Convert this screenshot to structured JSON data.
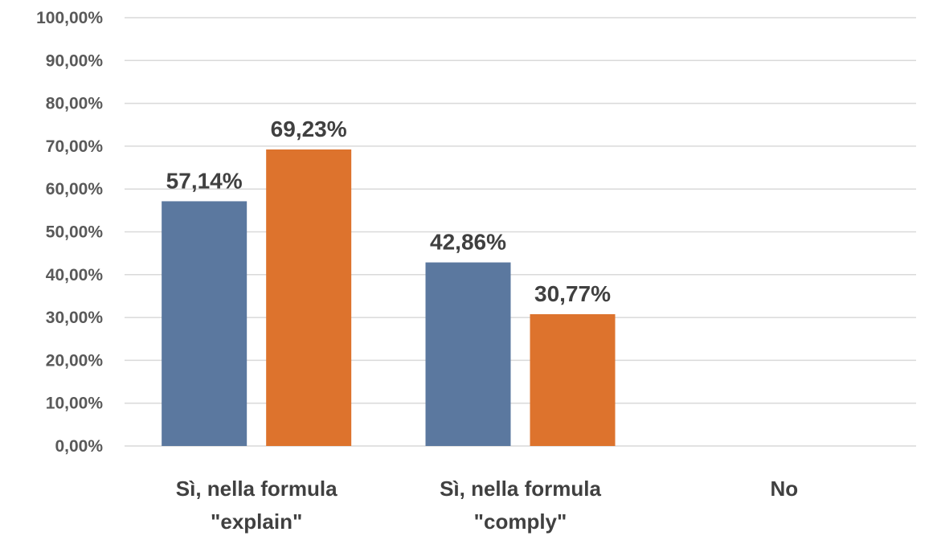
{
  "chart_data": {
    "type": "bar",
    "categories": [
      [
        "Sì, nella formula",
        "\"explain\""
      ],
      [
        "Sì, nella formula",
        "\"comply\""
      ],
      [
        "No"
      ]
    ],
    "series": [
      {
        "values": [
          57.14,
          42.86,
          null
        ],
        "labels": [
          "57,14%",
          "42,86%",
          ""
        ],
        "color": "#5b789f"
      },
      {
        "values": [
          69.23,
          30.77,
          null
        ],
        "labels": [
          "69,23%",
          "30,77%",
          ""
        ],
        "color": "#dd732d"
      }
    ],
    "yticks": [
      "0,00%",
      "10,00%",
      "20,00%",
      "30,00%",
      "40,00%",
      "50,00%",
      "60,00%",
      "70,00%",
      "80,00%",
      "90,00%",
      "100,00%"
    ],
    "ylim": [
      0,
      100
    ],
    "grid": true,
    "legend": "none"
  }
}
